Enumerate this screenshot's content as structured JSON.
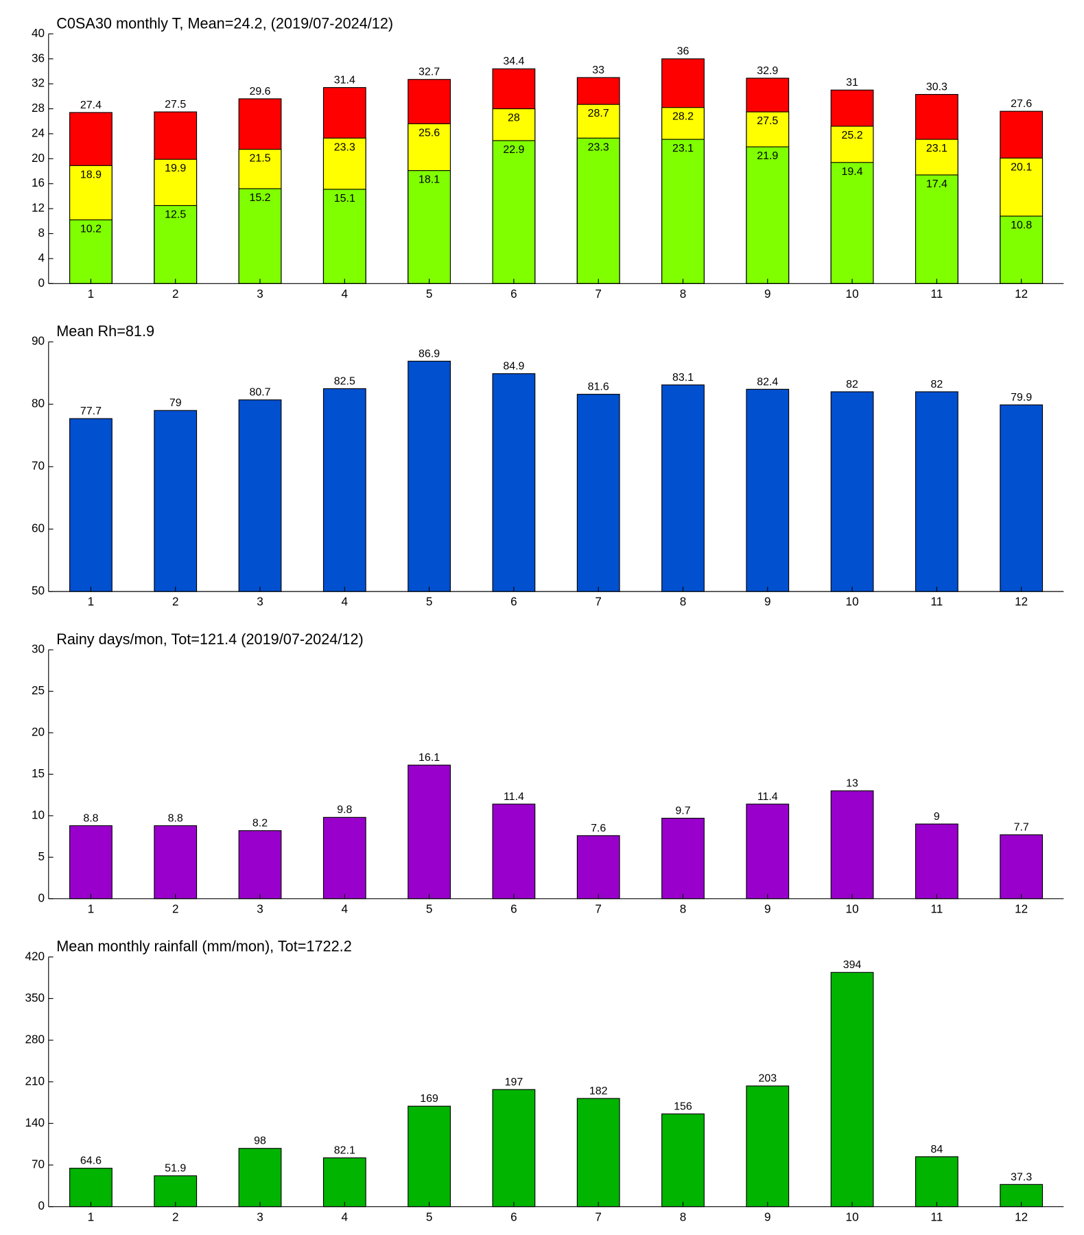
{
  "chart_data": [
    {
      "type": "overlay_bar",
      "title": "C0SA30 monthly T, Mean=24.2, (2019/07-2024/12)",
      "categories": [
        "1",
        "2",
        "3",
        "4",
        "5",
        "6",
        "7",
        "8",
        "9",
        "10",
        "11",
        "12"
      ],
      "series": [
        {
          "color": "#80ff00",
          "values": [
            10.2,
            12.5,
            15.2,
            15.1,
            18.1,
            22.9,
            23.3,
            23.1,
            21.9,
            19.4,
            17.4,
            10.8
          ]
        },
        {
          "color": "#ffff00",
          "values": [
            18.9,
            19.9,
            21.5,
            23.3,
            25.6,
            28,
            28.7,
            28.2,
            27.5,
            25.2,
            23.1,
            20.1
          ]
        },
        {
          "color": "#ff0000",
          "values": [
            27.4,
            27.5,
            29.6,
            31.4,
            32.7,
            34.4,
            33,
            36,
            32.9,
            31,
            30.3,
            27.6
          ]
        }
      ],
      "ylim": [
        0,
        40
      ],
      "yticks": [
        0,
        4,
        8,
        12,
        16,
        20,
        24,
        28,
        32,
        36,
        40
      ]
    },
    {
      "type": "bar",
      "title": "Mean Rh=81.9",
      "categories": [
        "1",
        "2",
        "3",
        "4",
        "5",
        "6",
        "7",
        "8",
        "9",
        "10",
        "11",
        "12"
      ],
      "values": [
        77.7,
        79,
        80.7,
        82.5,
        86.9,
        84.9,
        81.6,
        83.1,
        82.4,
        82,
        82,
        79.9
      ],
      "color": "#0050d0",
      "ylim": [
        50,
        90
      ],
      "yticks": [
        50,
        60,
        70,
        80,
        90
      ]
    },
    {
      "type": "bar",
      "title": "Rainy days/mon, Tot=121.4 (2019/07-2024/12)",
      "categories": [
        "1",
        "2",
        "3",
        "4",
        "5",
        "6",
        "7",
        "8",
        "9",
        "10",
        "11",
        "12"
      ],
      "values": [
        8.8,
        8.8,
        8.2,
        9.8,
        16.1,
        11.4,
        7.6,
        9.7,
        11.4,
        13,
        9,
        7.7
      ],
      "color": "#9900cc",
      "ylim": [
        0,
        30
      ],
      "yticks": [
        0,
        5,
        10,
        15,
        20,
        25,
        30
      ]
    },
    {
      "type": "bar",
      "title": "Mean monthly rainfall (mm/mon), Tot=1722.2",
      "categories": [
        "1",
        "2",
        "3",
        "4",
        "5",
        "6",
        "7",
        "8",
        "9",
        "10",
        "11",
        "12"
      ],
      "values": [
        64.6,
        51.9,
        98,
        82.1,
        169,
        197,
        182,
        156,
        203,
        394,
        84,
        37.3
      ],
      "color": "#00b400",
      "ylim": [
        0,
        420
      ],
      "yticks": [
        0,
        70,
        140,
        210,
        280,
        350,
        420
      ]
    }
  ]
}
